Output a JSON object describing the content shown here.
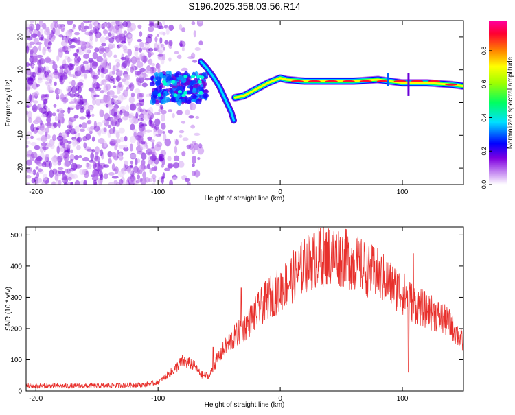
{
  "title": "S196.2025.358.03.56.R14",
  "chart_data": [
    {
      "type": "heatmap",
      "xlabel": "Height of straight line (km)",
      "ylabel": "Frequency (Hz)",
      "xlim": [
        -208,
        150
      ],
      "ylim": [
        -25,
        25
      ],
      "x_ticks": [
        -200,
        -100,
        0,
        100
      ],
      "y_ticks": [
        -20,
        -10,
        0,
        10,
        20
      ],
      "colorbar": {
        "label": "Normalized spectral amplitude",
        "range": [
          0,
          1
        ],
        "ticks": [
          "0.0",
          "0.2",
          "0.4",
          "0.6",
          "0.8"
        ],
        "colors": [
          "#ffffff",
          "#a000e0",
          "#0000ff",
          "#00ffff",
          "#00ff00",
          "#ffff00",
          "#ff8000",
          "#ff0040",
          "#ff00a0"
        ]
      },
      "noise_region_x": [
        -208,
        -95
      ],
      "doppler_trace": [
        {
          "x": -65,
          "y": 12.5
        },
        {
          "x": -60,
          "y": 10.5
        },
        {
          "x": -55,
          "y": 8.0
        },
        {
          "x": -50,
          "y": 5.0
        },
        {
          "x": -45,
          "y": 1.0
        },
        {
          "x": -40,
          "y": -3.0
        },
        {
          "x": -38,
          "y": -5.5
        },
        {
          "x": -37,
          "y": 1.5
        },
        {
          "x": -30,
          "y": 2.0
        },
        {
          "x": -20,
          "y": 4.0
        },
        {
          "x": -10,
          "y": 6.0
        },
        {
          "x": 0,
          "y": 7.5
        },
        {
          "x": 5,
          "y": 7.0
        },
        {
          "x": 20,
          "y": 6.5
        },
        {
          "x": 40,
          "y": 6.5
        },
        {
          "x": 60,
          "y": 6.5
        },
        {
          "x": 80,
          "y": 7.0
        },
        {
          "x": 90,
          "y": 6.5
        },
        {
          "x": 100,
          "y": 6.0
        },
        {
          "x": 120,
          "y": 6.0
        },
        {
          "x": 140,
          "y": 5.5
        },
        {
          "x": 150,
          "y": 5.0
        }
      ]
    },
    {
      "type": "line",
      "xlabel": "Height of straight line (km)",
      "ylabel": "SNR (10 * v/v)",
      "xlim": [
        -208,
        150
      ],
      "ylim": [
        0,
        525
      ],
      "x_ticks": [
        -200,
        -100,
        0,
        100
      ],
      "y_ticks": [
        0,
        100,
        200,
        300,
        400,
        500
      ],
      "series_color": "#e8302c",
      "envelope": [
        {
          "x": -208,
          "y": 18
        },
        {
          "x": -150,
          "y": 18
        },
        {
          "x": -110,
          "y": 22
        },
        {
          "x": -100,
          "y": 30
        },
        {
          "x": -90,
          "y": 60
        },
        {
          "x": -80,
          "y": 100
        },
        {
          "x": -72,
          "y": 90
        },
        {
          "x": -65,
          "y": 55
        },
        {
          "x": -58,
          "y": 50
        },
        {
          "x": -50,
          "y": 120
        },
        {
          "x": -40,
          "y": 170
        },
        {
          "x": -30,
          "y": 210
        },
        {
          "x": -20,
          "y": 260
        },
        {
          "x": -10,
          "y": 310
        },
        {
          "x": 0,
          "y": 340
        },
        {
          "x": 10,
          "y": 380
        },
        {
          "x": 20,
          "y": 420
        },
        {
          "x": 30,
          "y": 445
        },
        {
          "x": 40,
          "y": 455
        },
        {
          "x": 50,
          "y": 450
        },
        {
          "x": 60,
          "y": 430
        },
        {
          "x": 70,
          "y": 410
        },
        {
          "x": 80,
          "y": 390
        },
        {
          "x": 90,
          "y": 360
        },
        {
          "x": 100,
          "y": 330
        },
        {
          "x": 110,
          "y": 290
        },
        {
          "x": 120,
          "y": 270
        },
        {
          "x": 130,
          "y": 250
        },
        {
          "x": 140,
          "y": 220
        },
        {
          "x": 150,
          "y": 160
        }
      ],
      "spikes": [
        {
          "x": -55,
          "y": 140
        },
        {
          "x": -32,
          "y": 330
        },
        {
          "x": 33,
          "y": 520
        },
        {
          "x": 105,
          "y": 60
        },
        {
          "x": 109,
          "y": 440
        }
      ]
    }
  ]
}
